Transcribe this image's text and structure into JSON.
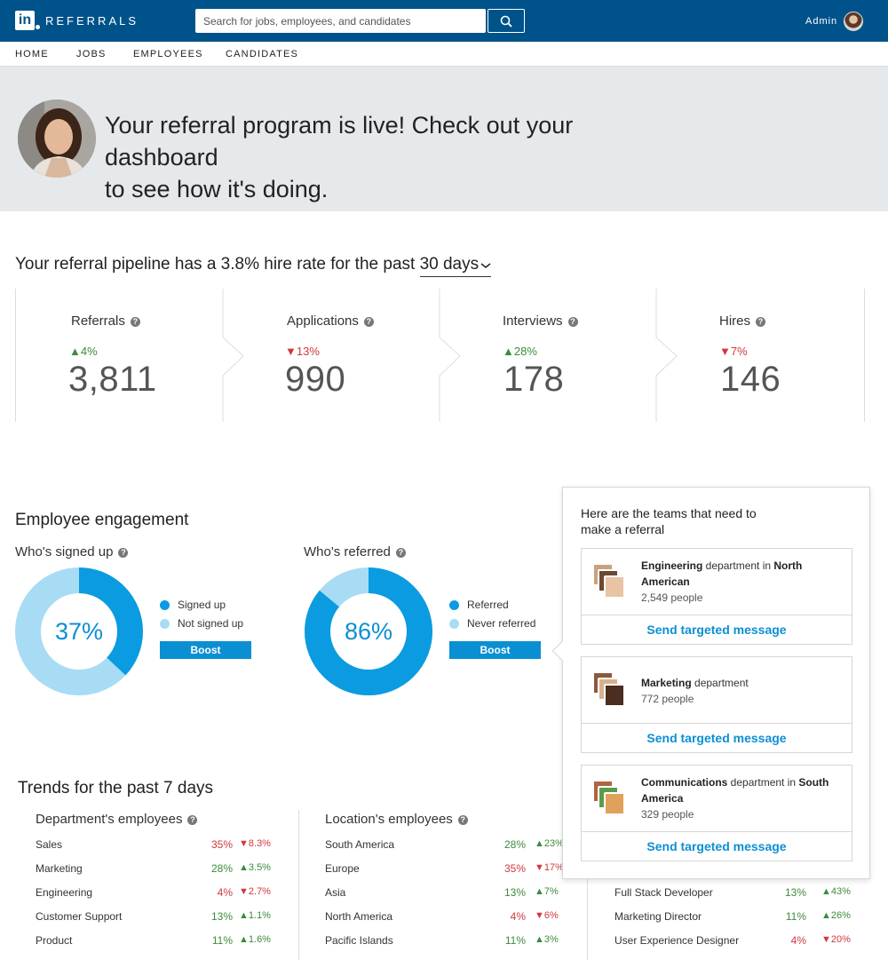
{
  "header": {
    "brand": "REFERRALS",
    "logo_text": "in",
    "search_placeholder": "Search for jobs, employees, and candidates",
    "admin_label": "Admin",
    "brand_color": "#00538a"
  },
  "nav": [
    "HOME",
    "JOBS",
    "EMPLOYEES",
    "CANDIDATES"
  ],
  "hero": {
    "message_line1": "Your referral program is live! Check out your dashboard",
    "message_line2": "to see how it's doing."
  },
  "pipeline": {
    "title_prefix": "Your referral pipeline has a 3.8% hire rate for the past",
    "period": "30 days",
    "stages": [
      {
        "name": "Referrals",
        "delta": "4%",
        "direction": "up",
        "value": "3,811"
      },
      {
        "name": "Applications",
        "delta": "13%",
        "direction": "down",
        "value": "990"
      },
      {
        "name": "Interviews",
        "delta": "28%",
        "direction": "up",
        "value": "178"
      },
      {
        "name": "Hires",
        "delta": "7%",
        "direction": "down",
        "value": "146"
      }
    ]
  },
  "engagement": {
    "title": "Employee engagement",
    "signed_up": {
      "title": "Who's signed up",
      "percent_label": "37%",
      "percent": 37,
      "legend": [
        "Signed up",
        "Not signed up"
      ],
      "button": "Boost"
    },
    "referred": {
      "title": "Who's referred",
      "percent_label": "86%",
      "percent": 86,
      "legend": [
        "Referred",
        "Never referred"
      ],
      "button": "Boost"
    },
    "colors": {
      "primary": "#0b9be0",
      "secondary": "#a8dcf5"
    }
  },
  "popover": {
    "title_line1": "Here are the teams that need to",
    "title_line2": "make a referral",
    "teams": [
      {
        "name": "Engineering",
        "mid": " department in ",
        "region": "North American",
        "count": "2,549 people",
        "action": "Send targeted message"
      },
      {
        "name": "Marketing",
        "mid": " department",
        "region": "",
        "count": "772 people",
        "action": "Send targeted message"
      },
      {
        "name": "Communications",
        "mid": " department in ",
        "region": "South America",
        "count": "329 people",
        "action": "Send targeted message"
      }
    ]
  },
  "trends": {
    "title": "Trends for the past 7 days",
    "department": {
      "title": "Department's employees",
      "rows": [
        {
          "name": "Sales",
          "pct": "35%",
          "pct_dir": "down",
          "chg": "8.3%",
          "chg_dir": "down"
        },
        {
          "name": "Marketing",
          "pct": "28%",
          "pct_dir": "up",
          "chg": "3.5%",
          "chg_dir": "up"
        },
        {
          "name": "Engineering",
          "pct": "4%",
          "pct_dir": "down",
          "chg": "2.7%",
          "chg_dir": "down"
        },
        {
          "name": "Customer Support",
          "pct": "13%",
          "pct_dir": "up",
          "chg": "1.1%",
          "chg_dir": "up"
        },
        {
          "name": "Product",
          "pct": "11%",
          "pct_dir": "up",
          "chg": "1.6%",
          "chg_dir": "up"
        }
      ]
    },
    "location": {
      "title": "Location's employees",
      "rows": [
        {
          "name": "South America",
          "pct": "28%",
          "pct_dir": "up",
          "chg": "23%",
          "chg_dir": "up"
        },
        {
          "name": "Europe",
          "pct": "35%",
          "pct_dir": "down",
          "chg": "17%",
          "chg_dir": "down"
        },
        {
          "name": "Asia",
          "pct": "13%",
          "pct_dir": "up",
          "chg": "7%",
          "chg_dir": "up"
        },
        {
          "name": "North America",
          "pct": "4%",
          "pct_dir": "down",
          "chg": "6%",
          "chg_dir": "down"
        },
        {
          "name": "Pacific Islands",
          "pct": "11%",
          "pct_dir": "up",
          "chg": "3%",
          "chg_dir": "up"
        }
      ]
    },
    "role": {
      "rows": [
        {
          "name": "Full Stack Developer",
          "pct": "13%",
          "pct_dir": "up",
          "chg": "43%",
          "chg_dir": "up"
        },
        {
          "name": "Marketing Director",
          "pct": "11%",
          "pct_dir": "up",
          "chg": "26%",
          "chg_dir": "up"
        },
        {
          "name": "User Experience Designer",
          "pct": "4%",
          "pct_dir": "down",
          "chg": "20%",
          "chg_dir": "down"
        }
      ]
    }
  }
}
